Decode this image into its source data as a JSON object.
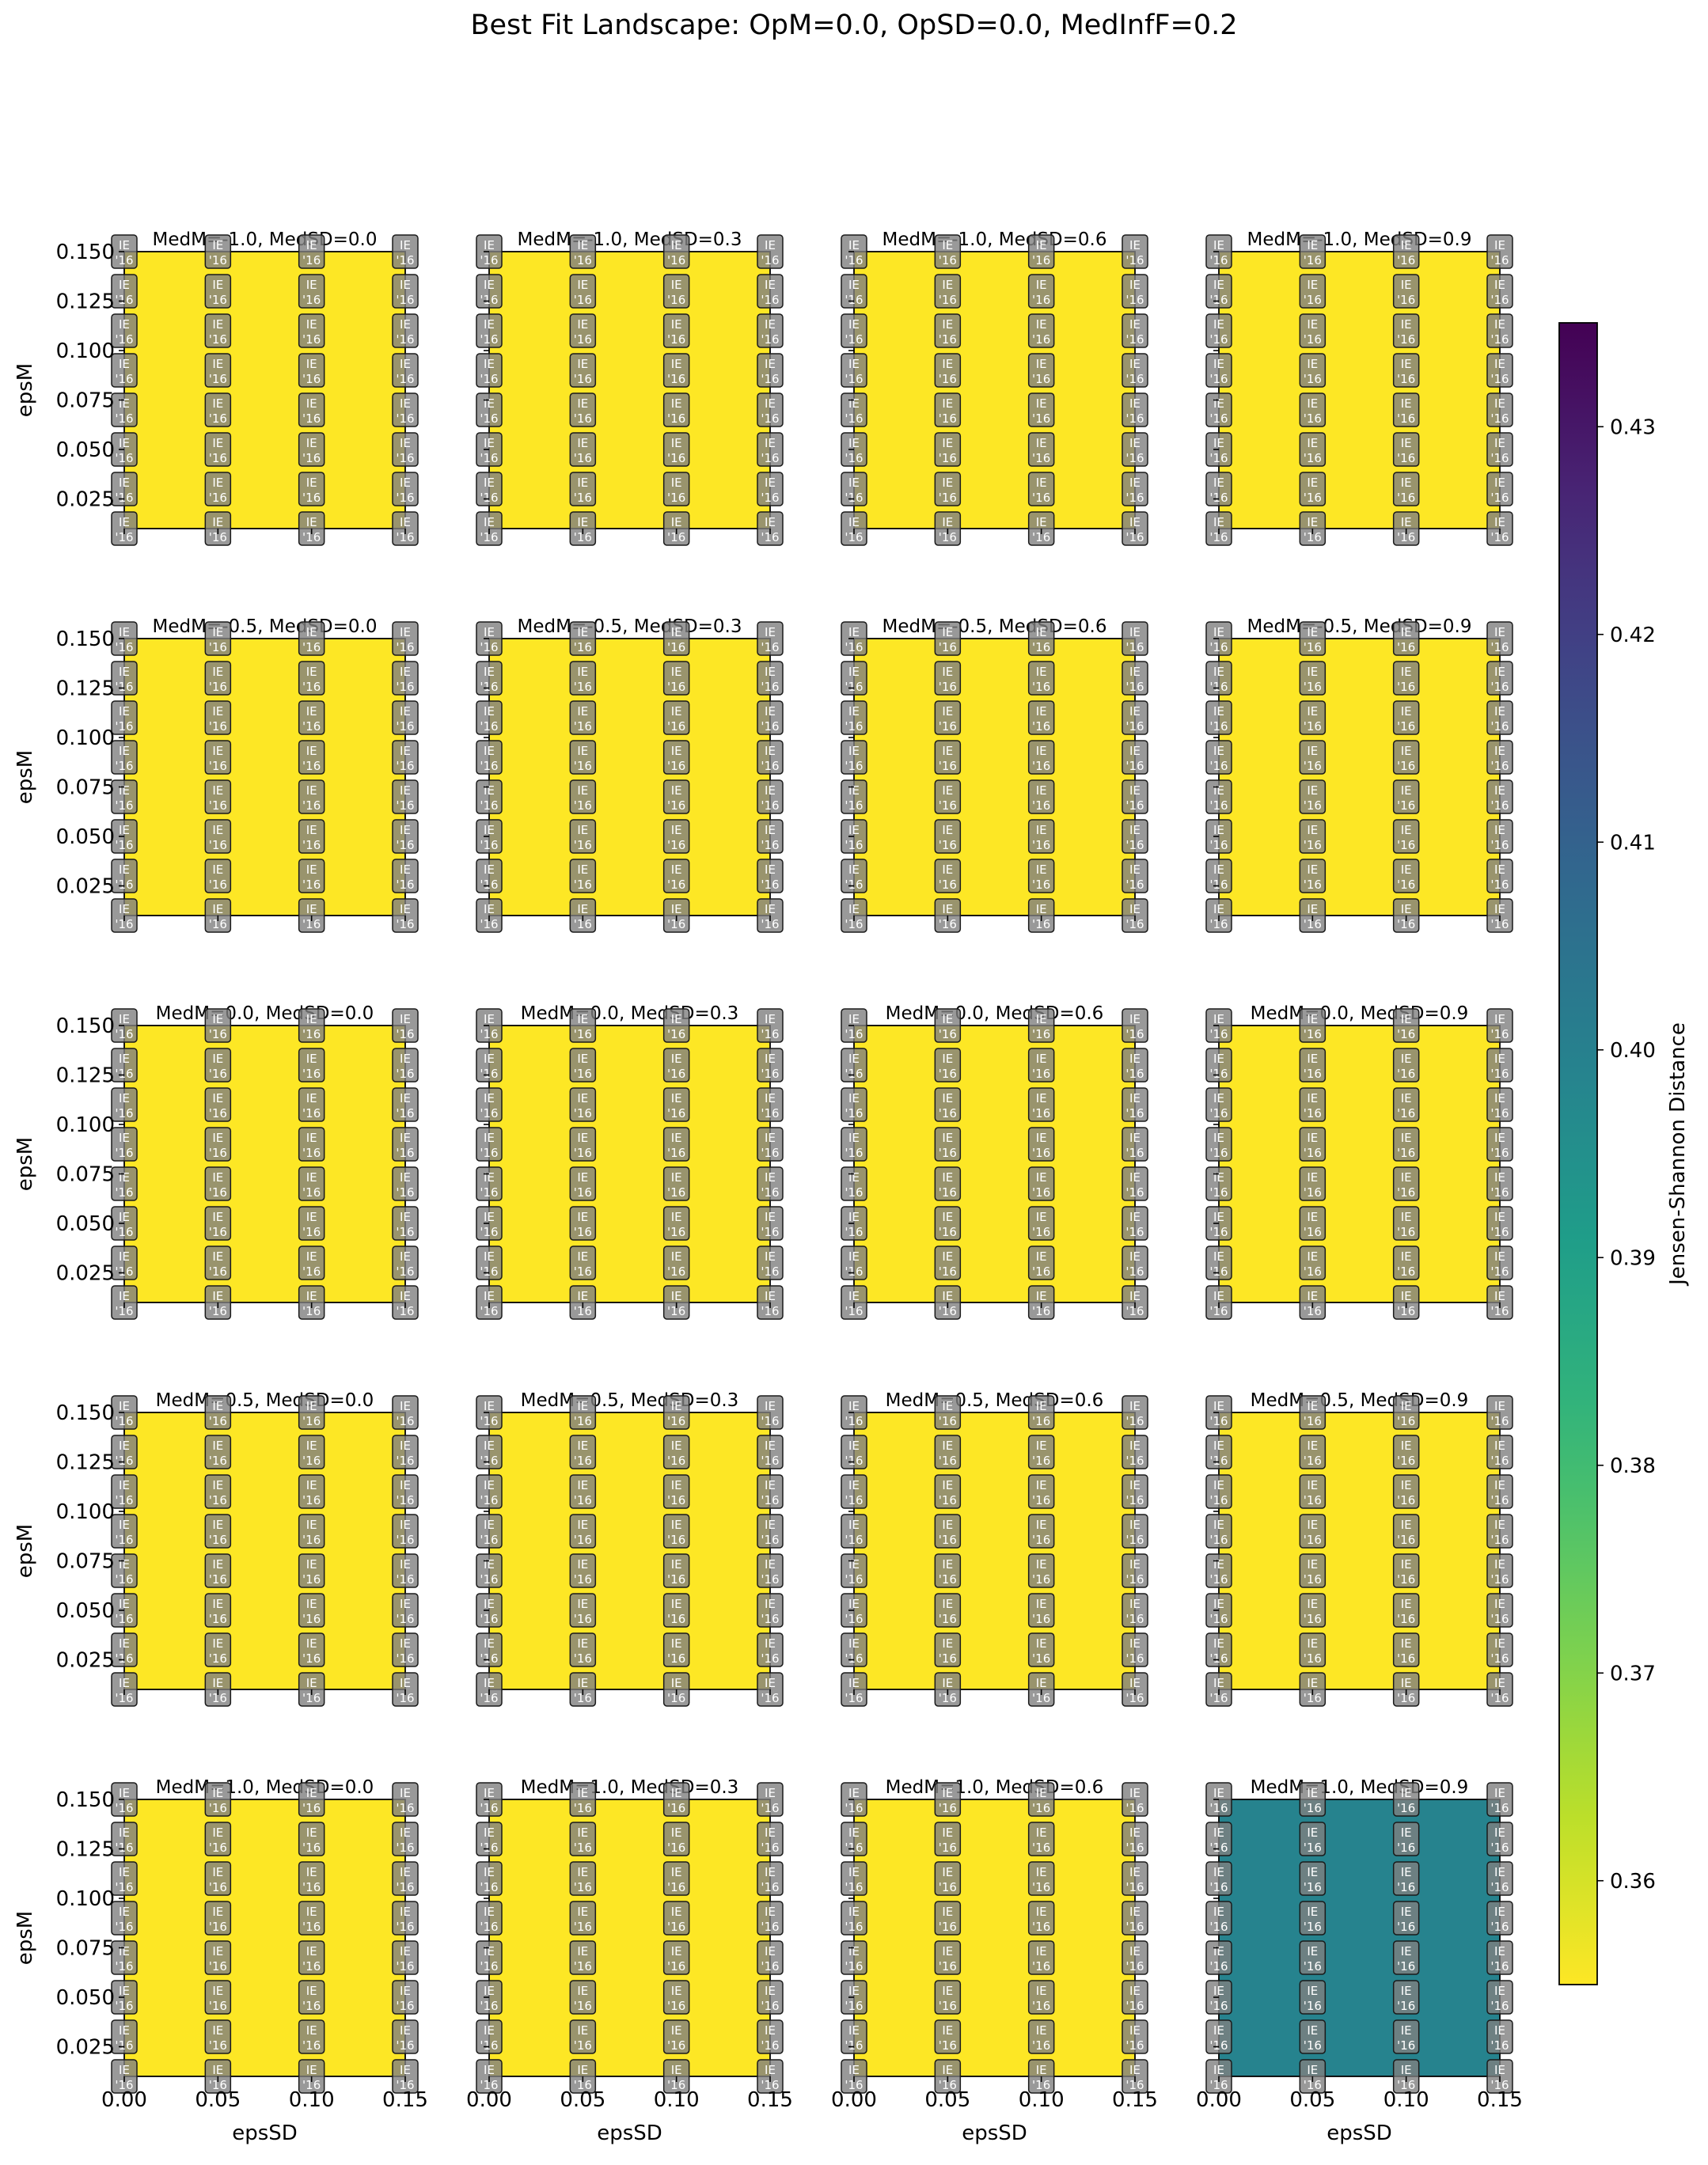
{
  "chart_data": {
    "type": "heatmap",
    "title": "Best Fit Landscape: OpM=0.0, OpSD=0.0, MedInfF=0.2",
    "xlabel": "epsSD",
    "ylabel": "epsM",
    "x_values": [
      0.0,
      0.05,
      0.1,
      0.15
    ],
    "y_values": [
      0.01,
      0.03,
      0.05,
      0.07,
      0.09,
      0.11,
      0.13,
      0.15
    ],
    "xticks": [
      "0.00",
      "0.05",
      "0.10",
      "0.15"
    ],
    "yticks": [
      "0.025",
      "0.050",
      "0.075",
      "0.100",
      "0.125",
      "0.150"
    ],
    "xlim": [
      0.0,
      0.15
    ],
    "ylim": [
      0.01,
      0.15
    ],
    "cell_annotation": [
      "IE",
      "'16"
    ],
    "colorbar": {
      "label": "Jensen-Shannon Distance",
      "colormap": "viridis",
      "range": [
        0.355,
        0.435
      ],
      "ticks": [
        "0.36",
        "0.37",
        "0.38",
        "0.39",
        "0.40",
        "0.41",
        "0.42",
        "0.43"
      ],
      "tick_values": [
        0.36,
        0.37,
        0.38,
        0.39,
        0.4,
        0.41,
        0.42,
        0.43
      ]
    },
    "panels": [
      {
        "title": "MedM=-1.0, MedSD=0.0",
        "value": 0.355
      },
      {
        "title": "MedM=-1.0, MedSD=0.3",
        "value": 0.355
      },
      {
        "title": "MedM=-1.0, MedSD=0.6",
        "value": 0.355
      },
      {
        "title": "MedM=-1.0, MedSD=0.9",
        "value": 0.355
      },
      {
        "title": "MedM=-0.5, MedSD=0.0",
        "value": 0.355
      },
      {
        "title": "MedM=-0.5, MedSD=0.3",
        "value": 0.355
      },
      {
        "title": "MedM=-0.5, MedSD=0.6",
        "value": 0.355
      },
      {
        "title": "MedM=-0.5, MedSD=0.9",
        "value": 0.355
      },
      {
        "title": "MedM=0.0, MedSD=0.0",
        "value": 0.355
      },
      {
        "title": "MedM=0.0, MedSD=0.3",
        "value": 0.355
      },
      {
        "title": "MedM=0.0, MedSD=0.6",
        "value": 0.355
      },
      {
        "title": "MedM=0.0, MedSD=0.9",
        "value": 0.355
      },
      {
        "title": "MedM=0.5, MedSD=0.0",
        "value": 0.355
      },
      {
        "title": "MedM=0.5, MedSD=0.3",
        "value": 0.355
      },
      {
        "title": "MedM=0.5, MedSD=0.6",
        "value": 0.355
      },
      {
        "title": "MedM=0.5, MedSD=0.9",
        "value": 0.355
      },
      {
        "title": "MedM=1.0, MedSD=0.0",
        "value": 0.355
      },
      {
        "title": "MedM=1.0, MedSD=0.3",
        "value": 0.355
      },
      {
        "title": "MedM=1.0, MedSD=0.6",
        "value": 0.355
      },
      {
        "title": "MedM=1.0, MedSD=0.9",
        "value": 0.399
      }
    ]
  }
}
